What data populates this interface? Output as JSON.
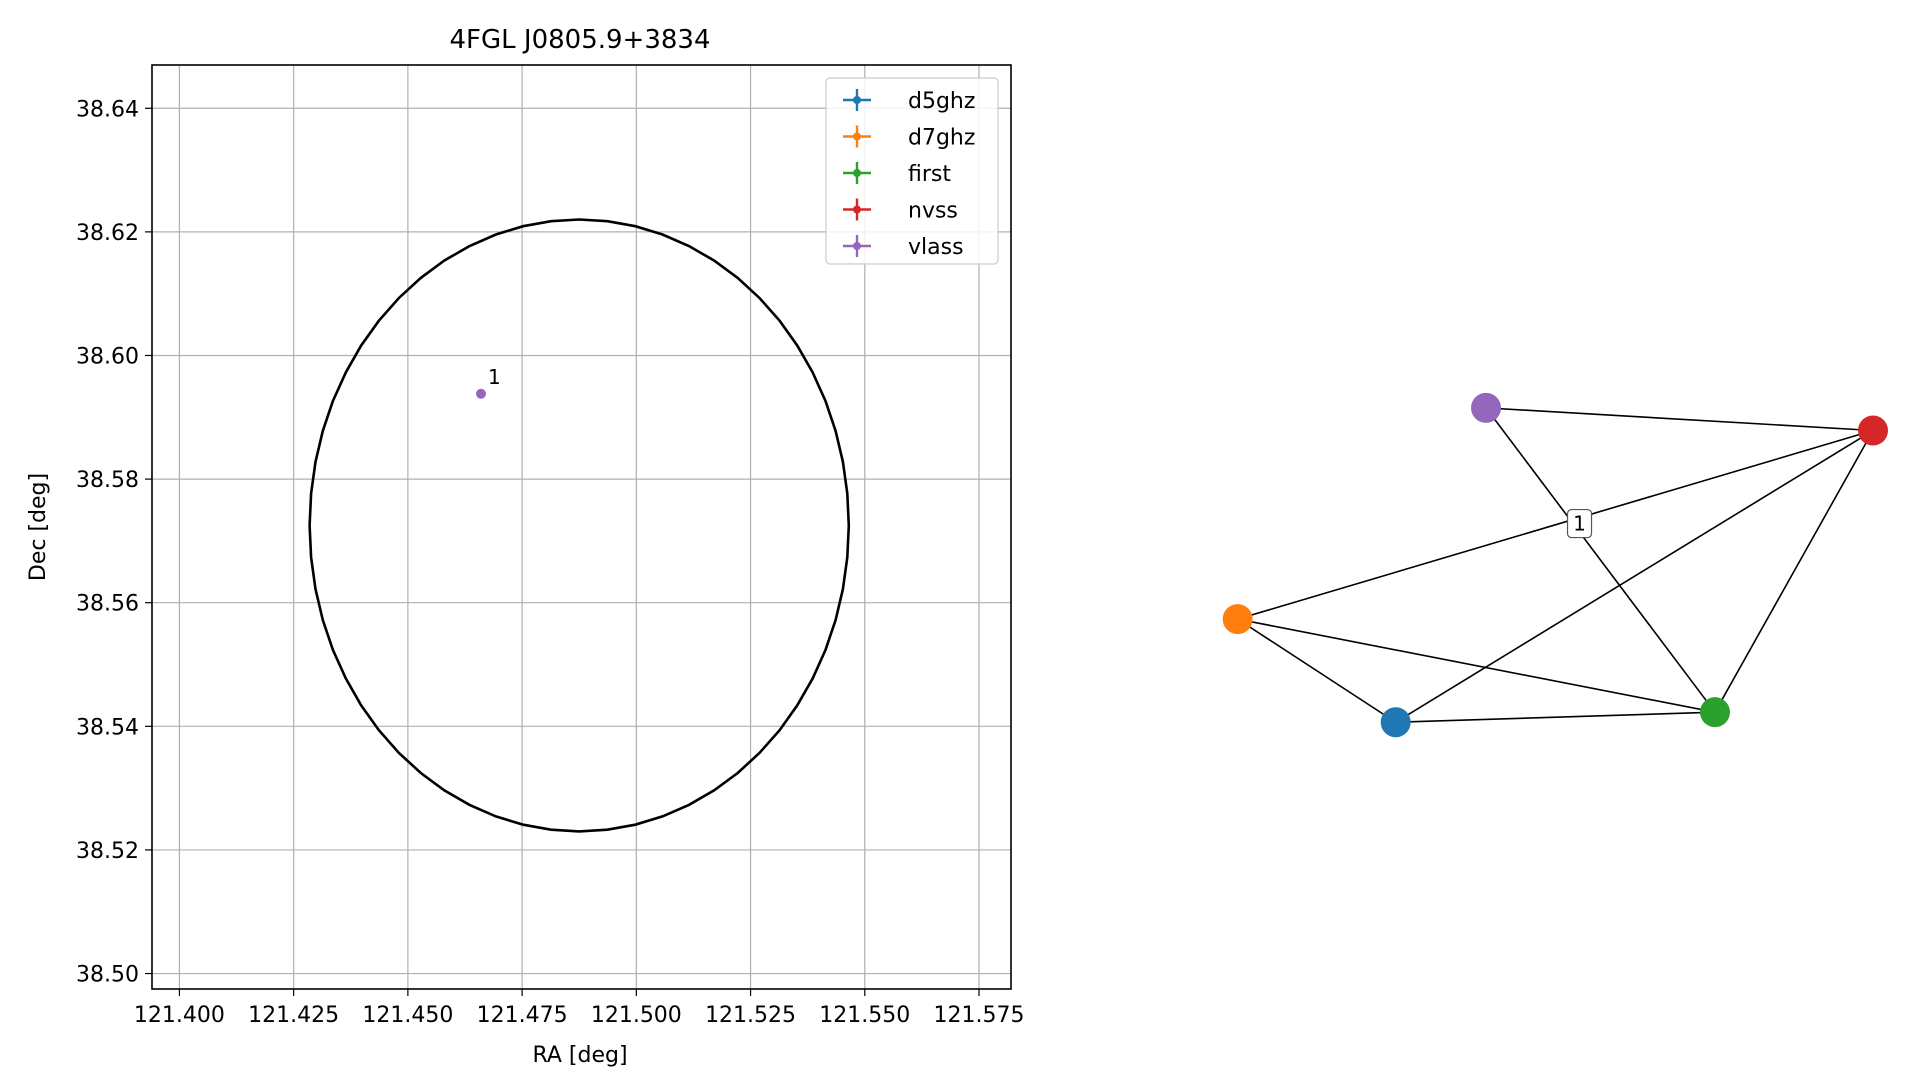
{
  "chart_data": [
    {
      "type": "scatter",
      "title": "4FGL J0805.9+3834",
      "xlabel": "RA [deg]",
      "ylabel": "Dec [deg]",
      "xlim": [
        121.394,
        121.582
      ],
      "ylim": [
        38.4975,
        38.647
      ],
      "grid": true,
      "xticks": [
        "121.400",
        "121.425",
        "121.450",
        "121.475",
        "121.500",
        "121.525",
        "121.550",
        "121.575"
      ],
      "xtick_values": [
        121.4,
        121.425,
        121.45,
        121.475,
        121.5,
        121.525,
        121.55,
        121.575
      ],
      "yticks": [
        "38.50",
        "38.52",
        "38.54",
        "38.56",
        "38.58",
        "38.60",
        "38.62",
        "38.64"
      ],
      "ytick_values": [
        38.5,
        38.52,
        38.54,
        38.56,
        38.58,
        38.6,
        38.62,
        38.64
      ],
      "legend": {
        "location": "upper right",
        "entries": [
          {
            "name": "d5ghz",
            "color": "#1f77b4"
          },
          {
            "name": "d7ghz",
            "color": "#ff7f0e"
          },
          {
            "name": "first",
            "color": "#2ca02c"
          },
          {
            "name": "nvss",
            "color": "#d62728"
          },
          {
            "name": "vlass",
            "color": "#9467bd"
          }
        ]
      },
      "points": [
        {
          "series": "vlass",
          "ra": 121.466,
          "dec": 38.5938,
          "label": "1",
          "color": "#9467bd"
        }
      ],
      "ellipse": {
        "center_ra": 121.4875,
        "center_dec": 38.5725,
        "semi_axis_ra": 0.059,
        "semi_axis_dec": 0.0495,
        "color": "#000000"
      }
    },
    {
      "type": "network",
      "nodes": [
        {
          "id": "d5ghz",
          "color": "#1f77b4",
          "x": -0.48,
          "y": -0.83
        },
        {
          "id": "d7ghz",
          "color": "#ff7f0e",
          "x": -0.97,
          "y": -0.42
        },
        {
          "id": "first",
          "color": "#2ca02c",
          "x": 0.51,
          "y": -0.79
        },
        {
          "id": "nvss",
          "color": "#d62728",
          "x": 1.0,
          "y": 0.33
        },
        {
          "id": "vlass",
          "color": "#9467bd",
          "x": -0.2,
          "y": 0.42
        }
      ],
      "edges": [
        [
          "vlass",
          "nvss"
        ],
        [
          "vlass",
          "first"
        ],
        [
          "nvss",
          "d7ghz"
        ],
        [
          "nvss",
          "d5ghz"
        ],
        [
          "nvss",
          "first"
        ],
        [
          "d7ghz",
          "d5ghz"
        ],
        [
          "d7ghz",
          "first"
        ],
        [
          "d5ghz",
          "first"
        ]
      ],
      "annotations": [
        {
          "text": "1",
          "x": 0.09,
          "y": -0.04
        }
      ]
    }
  ]
}
